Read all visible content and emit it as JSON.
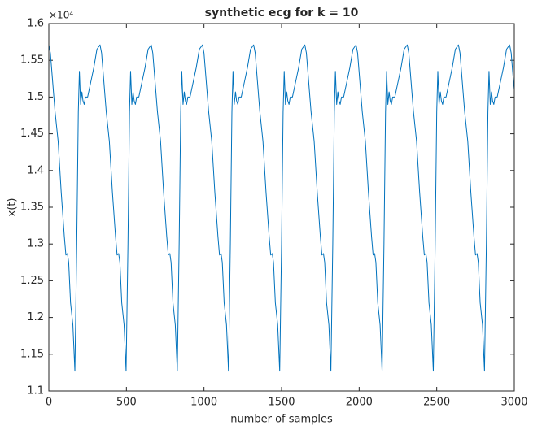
{
  "chart_data": {
    "type": "line",
    "title": "synthetic ecg for k = 10",
    "x_label": "number of samples",
    "y_label": "x(t)",
    "y_multiplier": "×10⁴",
    "color": "#0072bd",
    "xlim": [
      0,
      3000
    ],
    "xticks": [
      0,
      500,
      1000,
      1500,
      2000,
      2500,
      3000
    ],
    "ylim": [
      1.1,
      1.6
    ],
    "yticks": [
      1.1,
      1.15,
      1.2,
      1.25,
      1.3,
      1.35,
      1.4,
      1.45,
      1.5,
      1.55,
      1.6
    ],
    "x": [
      0,
      10,
      25,
      40,
      60,
      80,
      100,
      110,
      120,
      128,
      140,
      155,
      168,
      180,
      190,
      197,
      205,
      213,
      220,
      228,
      236,
      250,
      270,
      290,
      310,
      330,
      340,
      355,
      370,
      390,
      410,
      430,
      440,
      450,
      458,
      470,
      485,
      498,
      510,
      520,
      527,
      535,
      543,
      550,
      558,
      566,
      580,
      600,
      620,
      640,
      660,
      670,
      685,
      700,
      720,
      740,
      760,
      770,
      780,
      788,
      800,
      815,
      828,
      840,
      850,
      857,
      865,
      873,
      880,
      888,
      896,
      910,
      930,
      950,
      970,
      990,
      1000,
      1015,
      1030,
      1050,
      1070,
      1090,
      1100,
      1110,
      1118,
      1130,
      1145,
      1158,
      1170,
      1180,
      1187,
      1195,
      1203,
      1210,
      1218,
      1226,
      1240,
      1260,
      1280,
      1300,
      1320,
      1330,
      1345,
      1360,
      1380,
      1400,
      1420,
      1430,
      1440,
      1448,
      1460,
      1475,
      1488,
      1500,
      1510,
      1517,
      1525,
      1533,
      1540,
      1548,
      1556,
      1570,
      1590,
      1610,
      1630,
      1650,
      1660,
      1675,
      1690,
      1710,
      1730,
      1750,
      1760,
      1770,
      1778,
      1790,
      1805,
      1818,
      1830,
      1840,
      1847,
      1855,
      1863,
      1870,
      1878,
      1886,
      1900,
      1920,
      1940,
      1960,
      1980,
      1990,
      2005,
      2020,
      2040,
      2060,
      2080,
      2090,
      2100,
      2108,
      2120,
      2135,
      2148,
      2160,
      2170,
      2177,
      2185,
      2193,
      2200,
      2208,
      2216,
      2230,
      2250,
      2270,
      2290,
      2310,
      2320,
      2335,
      2350,
      2370,
      2390,
      2410,
      2420,
      2430,
      2438,
      2450,
      2465,
      2478,
      2490,
      2500,
      2507,
      2515,
      2523,
      2530,
      2538,
      2546,
      2560,
      2580,
      2600,
      2620,
      2640,
      2650,
      2665,
      2680,
      2700,
      2720,
      2740,
      2750,
      2760,
      2768,
      2780,
      2795,
      2808,
      2820,
      2830,
      2837,
      2845,
      2853,
      2860,
      2868,
      2876,
      2890,
      2910,
      2930,
      2950,
      2970,
      2980,
      2995,
      3000
    ],
    "values": [
      1.571,
      1.56,
      1.52,
      1.48,
      1.44,
      1.37,
      1.31,
      1.285,
      1.287,
      1.275,
      1.22,
      1.19,
      1.127,
      1.3,
      1.48,
      1.535,
      1.49,
      1.507,
      1.495,
      1.49,
      1.5,
      1.5,
      1.52,
      1.54,
      1.565,
      1.571,
      1.56,
      1.52,
      1.48,
      1.44,
      1.37,
      1.31,
      1.285,
      1.287,
      1.275,
      1.22,
      1.19,
      1.127,
      1.3,
      1.48,
      1.535,
      1.49,
      1.507,
      1.495,
      1.49,
      1.5,
      1.5,
      1.52,
      1.54,
      1.565,
      1.571,
      1.56,
      1.52,
      1.48,
      1.44,
      1.37,
      1.31,
      1.285,
      1.287,
      1.275,
      1.22,
      1.19,
      1.127,
      1.3,
      1.48,
      1.535,
      1.49,
      1.507,
      1.495,
      1.49,
      1.5,
      1.5,
      1.52,
      1.54,
      1.565,
      1.571,
      1.56,
      1.52,
      1.48,
      1.44,
      1.37,
      1.31,
      1.285,
      1.287,
      1.275,
      1.22,
      1.19,
      1.127,
      1.3,
      1.48,
      1.535,
      1.49,
      1.507,
      1.495,
      1.49,
      1.5,
      1.5,
      1.52,
      1.54,
      1.565,
      1.571,
      1.56,
      1.52,
      1.48,
      1.44,
      1.37,
      1.31,
      1.285,
      1.287,
      1.275,
      1.22,
      1.19,
      1.127,
      1.3,
      1.48,
      1.535,
      1.49,
      1.507,
      1.495,
      1.49,
      1.5,
      1.5,
      1.52,
      1.54,
      1.565,
      1.571,
      1.56,
      1.52,
      1.48,
      1.44,
      1.37,
      1.31,
      1.285,
      1.287,
      1.275,
      1.22,
      1.19,
      1.127,
      1.3,
      1.48,
      1.535,
      1.49,
      1.507,
      1.495,
      1.49,
      1.5,
      1.5,
      1.52,
      1.54,
      1.565,
      1.571,
      1.56,
      1.52,
      1.48,
      1.44,
      1.37,
      1.31,
      1.285,
      1.287,
      1.275,
      1.22,
      1.19,
      1.127,
      1.3,
      1.48,
      1.535,
      1.49,
      1.507,
      1.495,
      1.49,
      1.5,
      1.5,
      1.52,
      1.54,
      1.565,
      1.571,
      1.56,
      1.52,
      1.48,
      1.44,
      1.37,
      1.31,
      1.285,
      1.287,
      1.275,
      1.22,
      1.19,
      1.127,
      1.3,
      1.48,
      1.535,
      1.49,
      1.507,
      1.495,
      1.49,
      1.5,
      1.5,
      1.52,
      1.54,
      1.565,
      1.571,
      1.56,
      1.52,
      1.48,
      1.44,
      1.37,
      1.31,
      1.285,
      1.287,
      1.275,
      1.22,
      1.19,
      1.127,
      1.3,
      1.48,
      1.535,
      1.49,
      1.507,
      1.495,
      1.49,
      1.5,
      1.5,
      1.52,
      1.54,
      1.565,
      1.571,
      1.56,
      1.52,
      1.51
    ]
  }
}
